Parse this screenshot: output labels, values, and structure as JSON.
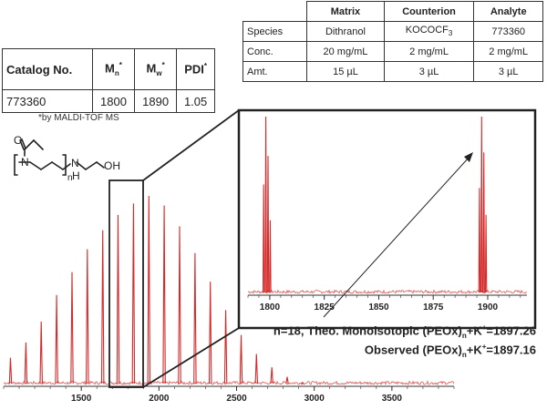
{
  "catalog_table": {
    "headers": {
      "catalog": "Catalog No.",
      "mn": "M",
      "mn_sub": "n",
      "mn_sup": "*",
      "mw": "M",
      "mw_sub": "w",
      "mw_sup": "*",
      "pdi": "PDI",
      "pdi_sup": "*"
    },
    "row": {
      "catalog": "773360",
      "mn": "1800",
      "mw": "1890",
      "pdi": "1.05"
    },
    "footnote": "*by MALDI-TOF MS"
  },
  "prep_table": {
    "columns": [
      "Matrix",
      "Counterion",
      "Analyte"
    ],
    "rows": [
      {
        "label": "Species",
        "matrix": "Dithranol",
        "counterion_main": "KOCOCF",
        "counterion_sub": "3",
        "analyte": "773360"
      },
      {
        "label": "Conc.",
        "matrix": "20 mg/mL",
        "counterion": "2 mg/mL",
        "analyte": "2 mg/mL"
      },
      {
        "label": "Amt.",
        "matrix": "15 µL",
        "counterion": "3 µL",
        "analyte": "3 µL"
      }
    ]
  },
  "structure": {
    "oh_label": "OH",
    "n_label": "N",
    "h_label": "H",
    "index_label": "n"
  },
  "annotation": {
    "line1_pre": "n=18, Theo. Monoisotopic (PEOx)",
    "line1_sub": "n",
    "line1_mid": "+K",
    "line1_sup": "+",
    "line1_post": "=1897.26",
    "line2_pre": "Observed (PEOx)",
    "line2_sub": "n",
    "line2_mid": "+K",
    "line2_sup": "+",
    "line2_post": "=1897.16"
  },
  "colors": {
    "spectrum": "#d42a2a",
    "axis": "#333333"
  },
  "chart_data": [
    {
      "type": "line",
      "title": "",
      "xlabel": "",
      "ylabel": "",
      "xlim": [
        1000,
        3900
      ],
      "ylim": [
        0,
        100
      ],
      "xticks": [
        1500,
        2000,
        2500,
        3000,
        3500
      ],
      "x_tick_labels": [
        "1500",
        "2000",
        "2500",
        "3000",
        "3500"
      ],
      "series": [
        {
          "peaks_x": [
            1044,
            1143,
            1242,
            1341,
            1440,
            1539,
            1638,
            1737,
            1836,
            1935,
            2034,
            2133,
            2232,
            2331,
            2430,
            2529,
            2628,
            2727,
            2826,
            2925
          ],
          "peaks_y": [
            15,
            23,
            34,
            48,
            60,
            72,
            82,
            90,
            96,
            100,
            95,
            84,
            70,
            55,
            40,
            27,
            17,
            10,
            5,
            2
          ]
        }
      ]
    },
    {
      "type": "line",
      "title": "",
      "xlim": [
        1790,
        1918
      ],
      "ylim": [
        0,
        100
      ],
      "xticks": [
        1800,
        1825,
        1850,
        1875,
        1900
      ],
      "x_tick_labels": [
        "1800",
        "1825",
        "1850",
        "1875",
        "1900"
      ],
      "series": [
        {
          "peaks_x": [
            1797.2,
            1798.2,
            1799.2,
            1800.2,
            1896.2,
            1897.2,
            1898.2,
            1899.2
          ],
          "peaks_y": [
            62,
            100,
            78,
            42,
            60,
            100,
            80,
            45
          ]
        }
      ]
    }
  ]
}
